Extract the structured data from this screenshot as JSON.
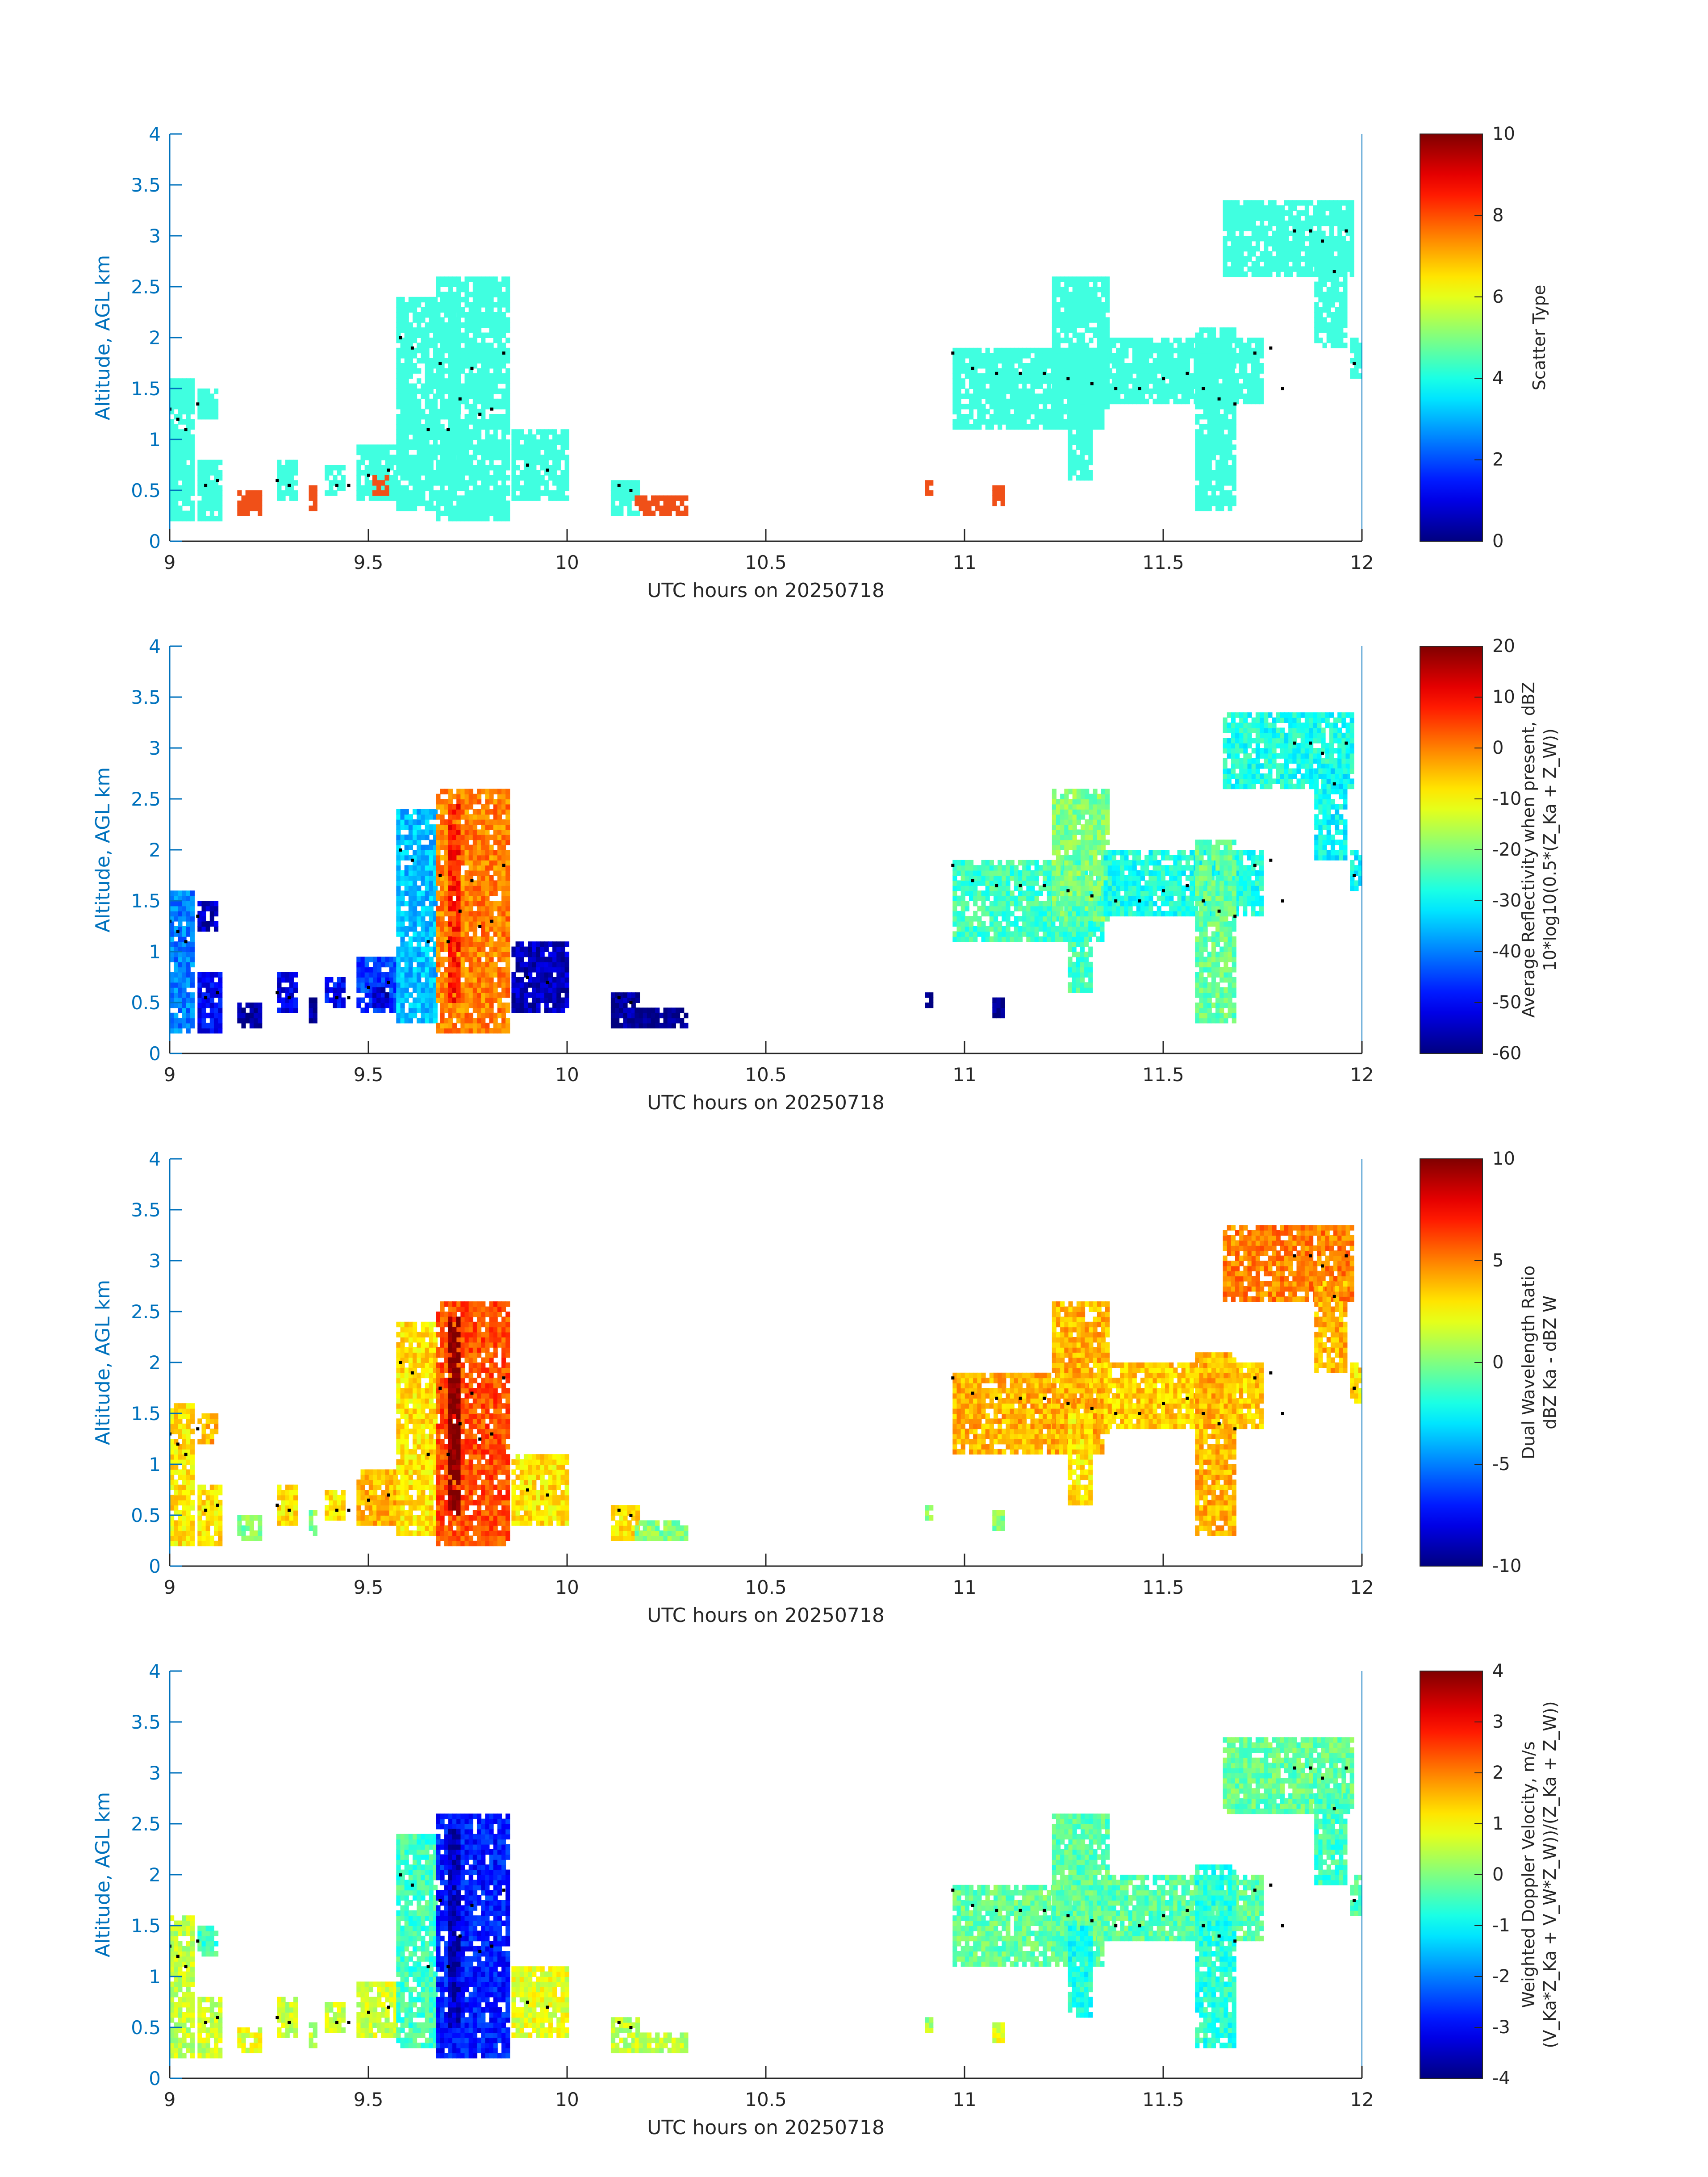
{
  "figure": {
    "x_axis_label": "UTC hours on 20250718",
    "y_axis_label": "Altitude, AGL km"
  },
  "colors": {
    "axis": "#0072BD",
    "text": "#262626",
    "scatter_cyan": "#40FFE0",
    "scatter_red": "#F05018",
    "cloud_dots": "#000000"
  },
  "chart_data": [
    {
      "type": "heatmap",
      "x_range": [
        9,
        12
      ],
      "y_range": [
        0,
        4
      ],
      "x_ticks": [
        9,
        9.5,
        10,
        10.5,
        11,
        11.5,
        12
      ],
      "x_tick_labels": [
        "9",
        "9.5",
        "10",
        "10.5",
        "11",
        "11.5",
        "12"
      ],
      "y_ticks": [
        0,
        0.5,
        1,
        1.5,
        2,
        2.5,
        3,
        3.5,
        4
      ],
      "y_tick_labels": [
        "0",
        "0.5",
        "1",
        "1.5",
        "2",
        "2.5",
        "3",
        "3.5",
        "4"
      ],
      "xlabel": "UTC hours on 20250718",
      "ylabel": "Altitude, AGL km",
      "colorbar": {
        "label_lines": [
          "Scatter Type"
        ],
        "range": [
          0,
          10
        ],
        "ticks": [
          0,
          2,
          4,
          6,
          8,
          10
        ],
        "tick_labels": [
          "0",
          "2",
          "4",
          "6",
          "8",
          "10"
        ],
        "colormap": "jet"
      },
      "field": "scatter_type"
    },
    {
      "type": "heatmap",
      "x_range": [
        9,
        12
      ],
      "y_range": [
        0,
        4
      ],
      "x_ticks": [
        9,
        9.5,
        10,
        10.5,
        11,
        11.5,
        12
      ],
      "x_tick_labels": [
        "9",
        "9.5",
        "10",
        "10.5",
        "11",
        "11.5",
        "12"
      ],
      "y_ticks": [
        0,
        0.5,
        1,
        1.5,
        2,
        2.5,
        3,
        3.5,
        4
      ],
      "y_tick_labels": [
        "0",
        "0.5",
        "1",
        "1.5",
        "2",
        "2.5",
        "3",
        "3.5",
        "4"
      ],
      "xlabel": "UTC hours on 20250718",
      "ylabel": "Altitude, AGL km",
      "colorbar": {
        "label_lines": [
          "Average Reflectivity when present, dBZ",
          "10*log10(0.5*(Z_Ka + Z_W))"
        ],
        "range": [
          -60,
          20
        ],
        "ticks": [
          -60,
          -50,
          -40,
          -30,
          -20,
          -10,
          0,
          10,
          20
        ],
        "tick_labels": [
          "-60",
          "-50",
          "-40",
          "-30",
          "-20",
          "-10",
          "0",
          "10",
          "20"
        ],
        "colormap": "jet"
      },
      "field": "reflectivity"
    },
    {
      "type": "heatmap",
      "x_range": [
        9,
        12
      ],
      "y_range": [
        0,
        4
      ],
      "x_ticks": [
        9,
        9.5,
        10,
        10.5,
        11,
        11.5,
        12
      ],
      "x_tick_labels": [
        "9",
        "9.5",
        "10",
        "10.5",
        "11",
        "11.5",
        "12"
      ],
      "y_ticks": [
        0,
        0.5,
        1,
        1.5,
        2,
        2.5,
        3,
        3.5,
        4
      ],
      "y_tick_labels": [
        "0",
        "0.5",
        "1",
        "1.5",
        "2",
        "2.5",
        "3",
        "3.5",
        "4"
      ],
      "xlabel": "UTC hours on 20250718",
      "ylabel": "Altitude, AGL km",
      "colorbar": {
        "label_lines": [
          "Dual Wavelength Ratio",
          "dBZ Ka - dBZ W"
        ],
        "range": [
          -10,
          10
        ],
        "ticks": [
          -10,
          -5,
          0,
          5,
          10
        ],
        "tick_labels": [
          "-10",
          "-5",
          "0",
          "5",
          "10"
        ],
        "colormap": "jet"
      },
      "field": "dwr"
    },
    {
      "type": "heatmap",
      "x_range": [
        9,
        12
      ],
      "y_range": [
        0,
        4
      ],
      "x_ticks": [
        9,
        9.5,
        10,
        10.5,
        11,
        11.5,
        12
      ],
      "x_tick_labels": [
        "9",
        "9.5",
        "10",
        "10.5",
        "11",
        "11.5",
        "12"
      ],
      "y_ticks": [
        0,
        0.5,
        1,
        1.5,
        2,
        2.5,
        3,
        3.5,
        4
      ],
      "y_tick_labels": [
        "0",
        "0.5",
        "1",
        "1.5",
        "2",
        "2.5",
        "3",
        "3.5",
        "4"
      ],
      "xlabel": "UTC hours on 20250718",
      "ylabel": "Altitude, AGL km",
      "colorbar": {
        "label_lines": [
          "Weighted Doppler Velocity, m/s",
          "(V_Ka*Z_Ka + V_W*Z_W))/(Z_Ka + Z_W))"
        ],
        "range": [
          -4,
          4
        ],
        "ticks": [
          -4,
          -3,
          -2,
          -1,
          0,
          1,
          2,
          3,
          4
        ],
        "tick_labels": [
          "-4",
          "-3",
          "-2",
          "-1",
          "0",
          "1",
          "2",
          "3",
          "4"
        ],
        "colormap": "jet"
      },
      "field": "velocity"
    }
  ],
  "echo_features": [
    {
      "x0": 9.0,
      "x1": 9.06,
      "y0": 0.2,
      "y1": 1.6,
      "scatter": 4,
      "refl": -40,
      "dwr": 3,
      "vel": 0.5
    },
    {
      "x0": 9.07,
      "x1": 9.13,
      "y0": 0.2,
      "y1": 0.8,
      "scatter": 4,
      "refl": -50,
      "dwr": 3,
      "vel": 0.6
    },
    {
      "x0": 9.07,
      "x1": 9.12,
      "y0": 1.2,
      "y1": 1.5,
      "scatter": 4,
      "refl": -55,
      "dwr": 4,
      "vel": -0.5
    },
    {
      "x0": 9.17,
      "x1": 9.23,
      "y0": 0.25,
      "y1": 0.5,
      "scatter": 8.5,
      "refl": -58,
      "dwr": 0,
      "vel": 0.8
    },
    {
      "x0": 9.27,
      "x1": 9.32,
      "y0": 0.4,
      "y1": 0.8,
      "scatter": 4,
      "refl": -52,
      "dwr": 3,
      "vel": 0.6
    },
    {
      "x0": 9.35,
      "x1": 9.37,
      "y0": 0.3,
      "y1": 0.55,
      "scatter": 8.5,
      "refl": -58,
      "dwr": 0,
      "vel": 0.5
    },
    {
      "x0": 9.39,
      "x1": 9.44,
      "y0": 0.45,
      "y1": 0.75,
      "scatter": 4,
      "refl": -50,
      "dwr": 3,
      "vel": 0.6
    },
    {
      "x0": 9.47,
      "x1": 9.57,
      "y0": 0.4,
      "y1": 0.95,
      "scatter": 4,
      "refl": -45,
      "dwr": 4,
      "vel": 0.7
    },
    {
      "x0": 9.51,
      "x1": 9.55,
      "y0": 0.45,
      "y1": 0.65,
      "scatter": 8.5,
      "refl": -55,
      "dwr": 4,
      "vel": 0.5
    },
    {
      "x0": 9.57,
      "x1": 9.67,
      "y0": 0.3,
      "y1": 2.4,
      "scatter": 4,
      "refl": -35,
      "dwr": 3,
      "vel": -0.5
    },
    {
      "x0": 9.67,
      "x1": 9.85,
      "y0": 0.2,
      "y1": 2.6,
      "scatter": 4,
      "refl": 0,
      "dwr": 6,
      "vel": -2.8
    },
    {
      "x0": 9.7,
      "x1": 9.73,
      "y0": 0.5,
      "y1": 2.45,
      "scatter": 4,
      "refl": 8,
      "dwr": 10,
      "vel": -3.5
    },
    {
      "x0": 9.86,
      "x1": 10.0,
      "y0": 0.4,
      "y1": 1.1,
      "scatter": 4,
      "refl": -55,
      "dwr": 3,
      "vel": 0.8
    },
    {
      "x0": 10.11,
      "x1": 10.18,
      "y0": 0.25,
      "y1": 0.6,
      "scatter": 4,
      "refl": -58,
      "dwr": 3,
      "vel": 0.5
    },
    {
      "x0": 10.17,
      "x1": 10.3,
      "y0": 0.25,
      "y1": 0.45,
      "scatter": 8.5,
      "refl": -60,
      "dwr": 0,
      "vel": 0.5
    },
    {
      "x0": 10.97,
      "x1": 11.35,
      "y0": 1.1,
      "y1": 1.9,
      "scatter": 4,
      "refl": -25,
      "dwr": 4,
      "vel": -0.2
    },
    {
      "x0": 11.22,
      "x1": 11.36,
      "y0": 1.3,
      "y1": 2.6,
      "scatter": 4,
      "refl": -20,
      "dwr": 4,
      "vel": -0.3
    },
    {
      "x0": 11.26,
      "x1": 11.32,
      "y0": 0.6,
      "y1": 1.5,
      "scatter": 4,
      "refl": -25,
      "dwr": 3,
      "vel": -0.8
    },
    {
      "x0": 11.35,
      "x1": 11.75,
      "y0": 1.35,
      "y1": 2.0,
      "scatter": 4,
      "refl": -28,
      "dwr": 3.5,
      "vel": -0.3
    },
    {
      "x0": 11.58,
      "x1": 11.68,
      "y0": 0.3,
      "y1": 2.1,
      "scatter": 4,
      "refl": -22,
      "dwr": 4,
      "vel": -0.7
    },
    {
      "x0": 11.65,
      "x1": 11.97,
      "y0": 2.6,
      "y1": 3.35,
      "scatter": 4,
      "refl": -28,
      "dwr": 5,
      "vel": -0.2
    },
    {
      "x0": 11.88,
      "x1": 11.96,
      "y0": 1.9,
      "y1": 2.8,
      "scatter": 4,
      "refl": -30,
      "dwr": 4,
      "vel": -0.5
    },
    {
      "x0": 11.97,
      "x1": 12.0,
      "y0": 1.6,
      "y1": 2.0,
      "scatter": 4,
      "refl": -30,
      "dwr": 3,
      "vel": -0.3
    },
    {
      "x0": 10.9,
      "x1": 10.92,
      "y0": 0.45,
      "y1": 0.6,
      "scatter": 8.5,
      "refl": -60,
      "dwr": 0,
      "vel": 0.3
    },
    {
      "x0": 11.07,
      "x1": 11.1,
      "y0": 0.35,
      "y1": 0.55,
      "scatter": 8.5,
      "refl": -60,
      "dwr": 0,
      "vel": 0.8
    }
  ],
  "cloud_base_points": [
    {
      "x": 9.0,
      "y": 1.3
    },
    {
      "x": 9.02,
      "y": 1.2
    },
    {
      "x": 9.04,
      "y": 1.1
    },
    {
      "x": 9.07,
      "y": 1.35
    },
    {
      "x": 9.09,
      "y": 0.55
    },
    {
      "x": 9.12,
      "y": 0.6
    },
    {
      "x": 9.27,
      "y": 0.6
    },
    {
      "x": 9.3,
      "y": 0.55
    },
    {
      "x": 9.42,
      "y": 0.55
    },
    {
      "x": 9.45,
      "y": 0.55
    },
    {
      "x": 9.5,
      "y": 0.65
    },
    {
      "x": 9.55,
      "y": 0.7
    },
    {
      "x": 9.58,
      "y": 2.0
    },
    {
      "x": 9.61,
      "y": 1.9
    },
    {
      "x": 9.65,
      "y": 1.1
    },
    {
      "x": 9.68,
      "y": 1.75
    },
    {
      "x": 9.7,
      "y": 1.1
    },
    {
      "x": 9.73,
      "y": 1.4
    },
    {
      "x": 9.76,
      "y": 1.7
    },
    {
      "x": 9.78,
      "y": 1.25
    },
    {
      "x": 9.81,
      "y": 1.3
    },
    {
      "x": 9.84,
      "y": 1.85
    },
    {
      "x": 9.9,
      "y": 0.75
    },
    {
      "x": 9.95,
      "y": 0.7
    },
    {
      "x": 10.13,
      "y": 0.55
    },
    {
      "x": 10.16,
      "y": 0.5
    },
    {
      "x": 10.97,
      "y": 1.85
    },
    {
      "x": 11.02,
      "y": 1.7
    },
    {
      "x": 11.08,
      "y": 1.65
    },
    {
      "x": 11.14,
      "y": 1.65
    },
    {
      "x": 11.2,
      "y": 1.65
    },
    {
      "x": 11.26,
      "y": 1.6
    },
    {
      "x": 11.32,
      "y": 1.55
    },
    {
      "x": 11.38,
      "y": 1.5
    },
    {
      "x": 11.44,
      "y": 1.5
    },
    {
      "x": 11.5,
      "y": 1.6
    },
    {
      "x": 11.56,
      "y": 1.65
    },
    {
      "x": 11.6,
      "y": 1.5
    },
    {
      "x": 11.64,
      "y": 1.4
    },
    {
      "x": 11.68,
      "y": 1.35
    },
    {
      "x": 11.73,
      "y": 1.85
    },
    {
      "x": 11.77,
      "y": 1.9
    },
    {
      "x": 11.8,
      "y": 1.5
    },
    {
      "x": 11.83,
      "y": 3.05
    },
    {
      "x": 11.87,
      "y": 3.05
    },
    {
      "x": 11.9,
      "y": 2.95
    },
    {
      "x": 11.93,
      "y": 2.65
    },
    {
      "x": 11.96,
      "y": 3.05
    },
    {
      "x": 11.98,
      "y": 1.75
    }
  ]
}
